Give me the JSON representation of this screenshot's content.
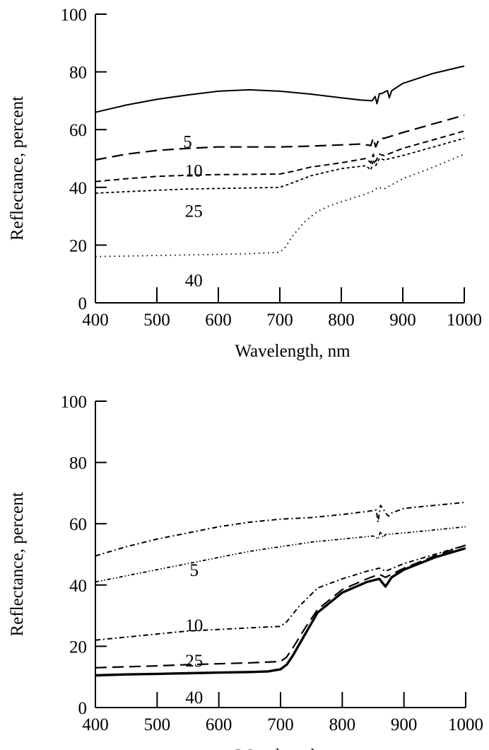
{
  "chart_data": [
    {
      "type": "line",
      "xlabel": "Wavelength, nm",
      "ylabel": "Reflectance, percent",
      "xlim": [
        400,
        1000
      ],
      "ylim": [
        0,
        100
      ],
      "xticks": [
        "400",
        "500",
        "600",
        "700",
        "800",
        "900",
        "1000"
      ],
      "yticks": [
        "0",
        "20",
        "40",
        "60",
        "80",
        "100"
      ],
      "grid": false,
      "series": [
        {
          "label": "",
          "style": "solid",
          "x": [
            400,
            450,
            500,
            550,
            600,
            650,
            700,
            750,
            800,
            830,
            850,
            855,
            858,
            862,
            866,
            870,
            875,
            878,
            882,
            900,
            950,
            1000
          ],
          "y": [
            66,
            68.5,
            70.5,
            72,
            73.3,
            73.8,
            73.3,
            72.3,
            71,
            70.3,
            70,
            71.5,
            69,
            72.5,
            72.5,
            73,
            73.5,
            71,
            73.5,
            76,
            79.5,
            82
          ]
        },
        {
          "label": "5",
          "style": "dash",
          "x": [
            400,
            450,
            500,
            550,
            600,
            650,
            700,
            750,
            800,
            830,
            848,
            852,
            856,
            862,
            870,
            900,
            950,
            1000
          ],
          "y": [
            49.5,
            51.5,
            52.8,
            53.5,
            54,
            54,
            54,
            54.3,
            54.7,
            55,
            54.5,
            57,
            54,
            57,
            57,
            59,
            62,
            65
          ]
        },
        {
          "label": "10",
          "style": "dash-short",
          "x": [
            400,
            450,
            500,
            550,
            600,
            650,
            700,
            720,
            750,
            800,
            840,
            848,
            852,
            856,
            862,
            870,
            900,
            950,
            1000
          ],
          "y": [
            42,
            43,
            43.8,
            44.2,
            44.4,
            44.5,
            44.6,
            45.5,
            47,
            48.5,
            50,
            48.5,
            51.5,
            49,
            51.5,
            51,
            53.5,
            56.5,
            59.5
          ]
        },
        {
          "label": "25",
          "style": "dash-fine",
          "x": [
            400,
            450,
            500,
            550,
            600,
            650,
            700,
            720,
            750,
            800,
            840,
            848,
            852,
            856,
            862,
            870,
            900,
            950,
            1000
          ],
          "y": [
            38,
            38.5,
            39,
            39.4,
            39.6,
            39.8,
            40,
            41.5,
            44,
            46.5,
            47.5,
            46,
            49.5,
            47.5,
            50,
            49.5,
            51,
            54,
            57
          ]
        },
        {
          "label": "40",
          "style": "dotted",
          "x": [
            400,
            450,
            500,
            550,
            600,
            650,
            700,
            710,
            720,
            740,
            760,
            780,
            800,
            830,
            850,
            860,
            870,
            900,
            950,
            1000
          ],
          "y": [
            16,
            16.2,
            16.4,
            16.6,
            16.8,
            17,
            17.5,
            19.5,
            23,
            28,
            31.5,
            33.5,
            35,
            37,
            38.5,
            40,
            39.5,
            43,
            47,
            51.5
          ]
        }
      ],
      "curve_labels": [
        {
          "text": "5",
          "x": 550,
          "y": 56
        },
        {
          "text": "10",
          "x": 560,
          "y": 46
        },
        {
          "text": "25",
          "x": 560,
          "y": 32
        },
        {
          "text": "40",
          "x": 560,
          "y": 8
        }
      ]
    },
    {
      "type": "line",
      "xlabel": "Wavelength, nm",
      "ylabel": "Reflectance, percent",
      "xlim": [
        400,
        1000
      ],
      "ylim": [
        0,
        100
      ],
      "xticks": [
        "400",
        "500",
        "600",
        "700",
        "800",
        "900",
        "1000"
      ],
      "yticks": [
        "0",
        "20",
        "40",
        "60",
        "80",
        "100"
      ],
      "grid": false,
      "series": [
        {
          "label": "5",
          "style": "dash-dot",
          "x": [
            400,
            450,
            500,
            550,
            600,
            650,
            700,
            750,
            800,
            840,
            855,
            858,
            862,
            866,
            870,
            875,
            880,
            900,
            950,
            1000
          ],
          "y": [
            49.5,
            52.5,
            55,
            57,
            59,
            60.5,
            61.5,
            62,
            63,
            64,
            64.5,
            60.5,
            66,
            65,
            63.5,
            62.5,
            63.5,
            65,
            66,
            67
          ]
        },
        {
          "label": "",
          "style": "dash-dot-dot",
          "x": [
            400,
            450,
            500,
            550,
            600,
            650,
            700,
            750,
            800,
            850,
            858,
            862,
            866,
            870,
            900,
            950,
            1000
          ],
          "y": [
            41,
            43,
            45,
            47,
            49,
            51,
            52.5,
            54,
            55,
            56,
            55,
            57.5,
            55.5,
            56.5,
            57,
            58,
            59
          ]
        },
        {
          "label": "10",
          "style": "dash-dot",
          "x": [
            400,
            450,
            500,
            550,
            600,
            650,
            700,
            710,
            730,
            760,
            800,
            840,
            860,
            870,
            900,
            950,
            1000
          ],
          "y": [
            22,
            23,
            24,
            25,
            25.5,
            26,
            26.5,
            28,
            33,
            39,
            42,
            44.5,
            45.5,
            44.5,
            47,
            50,
            53
          ]
        },
        {
          "label": "25",
          "style": "dash",
          "x": [
            400,
            450,
            500,
            550,
            600,
            650,
            700,
            710,
            720,
            740,
            760,
            800,
            840,
            860,
            870,
            900,
            950,
            1000
          ],
          "y": [
            13,
            13.3,
            13.6,
            14,
            14.3,
            14.6,
            15,
            16.5,
            19.5,
            26,
            32,
            38.5,
            42,
            43.5,
            42.5,
            45.5,
            49.5,
            53
          ]
        },
        {
          "label": "40",
          "style": "solid-thick",
          "x": [
            400,
            450,
            500,
            550,
            600,
            650,
            680,
            700,
            710,
            720,
            740,
            760,
            800,
            840,
            860,
            870,
            880,
            900,
            950,
            1000
          ],
          "y": [
            10.5,
            10.8,
            11,
            11.2,
            11.4,
            11.6,
            11.8,
            12.5,
            14,
            17,
            24,
            31,
            37.5,
            41,
            42,
            39.5,
            42.5,
            45,
            49,
            52
          ]
        }
      ],
      "curve_labels": [
        {
          "text": "5",
          "x": 560,
          "y": 45
        },
        {
          "text": "10",
          "x": 560,
          "y": 27
        },
        {
          "text": "25",
          "x": 560,
          "y": 15.5
        },
        {
          "text": "40",
          "x": 560,
          "y": 3.5
        }
      ]
    }
  ]
}
